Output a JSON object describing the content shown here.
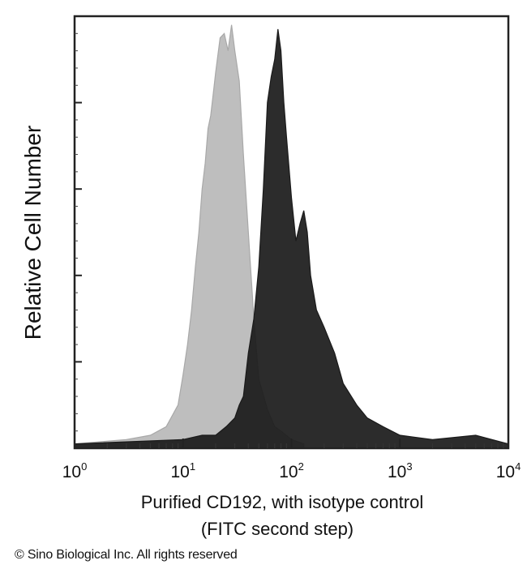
{
  "chart_data": {
    "type": "area",
    "title": "",
    "xlabel_line1": "Purified CD192, with isotype control",
    "xlabel_line2": "(FITC second step)",
    "ylabel": "Relative Cell Number",
    "x_scale": "log",
    "xlim": [
      1,
      10000
    ],
    "ylim": [
      0,
      100
    ],
    "x_ticks": [
      {
        "base": "10",
        "exp": "0",
        "value": 1
      },
      {
        "base": "10",
        "exp": "1",
        "value": 10
      },
      {
        "base": "10",
        "exp": "2",
        "value": 100
      },
      {
        "base": "10",
        "exp": "3",
        "value": 1000
      },
      {
        "base": "10",
        "exp": "4",
        "value": 10000
      }
    ],
    "y_tick_values": [
      20,
      40,
      60,
      80,
      100
    ],
    "grid": false,
    "legend": "none",
    "series": [
      {
        "color": "#a8a8a8",
        "x": [
          1,
          3,
          5,
          7,
          9,
          10,
          11,
          12,
          13,
          14,
          15,
          16,
          17,
          18,
          19,
          20,
          22,
          24,
          26,
          28,
          30,
          33,
          36,
          40,
          45,
          50,
          60,
          70,
          80,
          100,
          130
        ],
        "y": [
          1,
          2,
          3,
          5,
          10,
          17,
          24,
          32,
          42,
          50,
          60,
          66,
          74,
          77,
          82,
          87,
          95,
          96,
          92,
          98,
          92,
          85,
          68,
          50,
          30,
          16,
          9,
          5,
          4,
          2,
          1
        ]
      },
      {
        "color": "#1a1a1a",
        "x": [
          1,
          10,
          15,
          20,
          25,
          30,
          33,
          36,
          40,
          45,
          50,
          55,
          60,
          65,
          70,
          75,
          80,
          85,
          90,
          100,
          110,
          120,
          130,
          140,
          150,
          170,
          200,
          250,
          300,
          400,
          500,
          700,
          1000,
          2000,
          5000,
          10000
        ],
        "y": [
          1,
          2,
          3,
          3,
          5,
          7,
          10,
          12,
          22,
          30,
          42,
          60,
          80,
          86,
          90,
          97,
          92,
          80,
          72,
          58,
          48,
          52,
          55,
          50,
          40,
          32,
          28,
          22,
          15,
          10,
          7,
          5,
          3,
          2,
          3,
          1
        ]
      }
    ]
  },
  "footer": {
    "copyright": "© Sino Biological Inc. All rights reserved"
  }
}
